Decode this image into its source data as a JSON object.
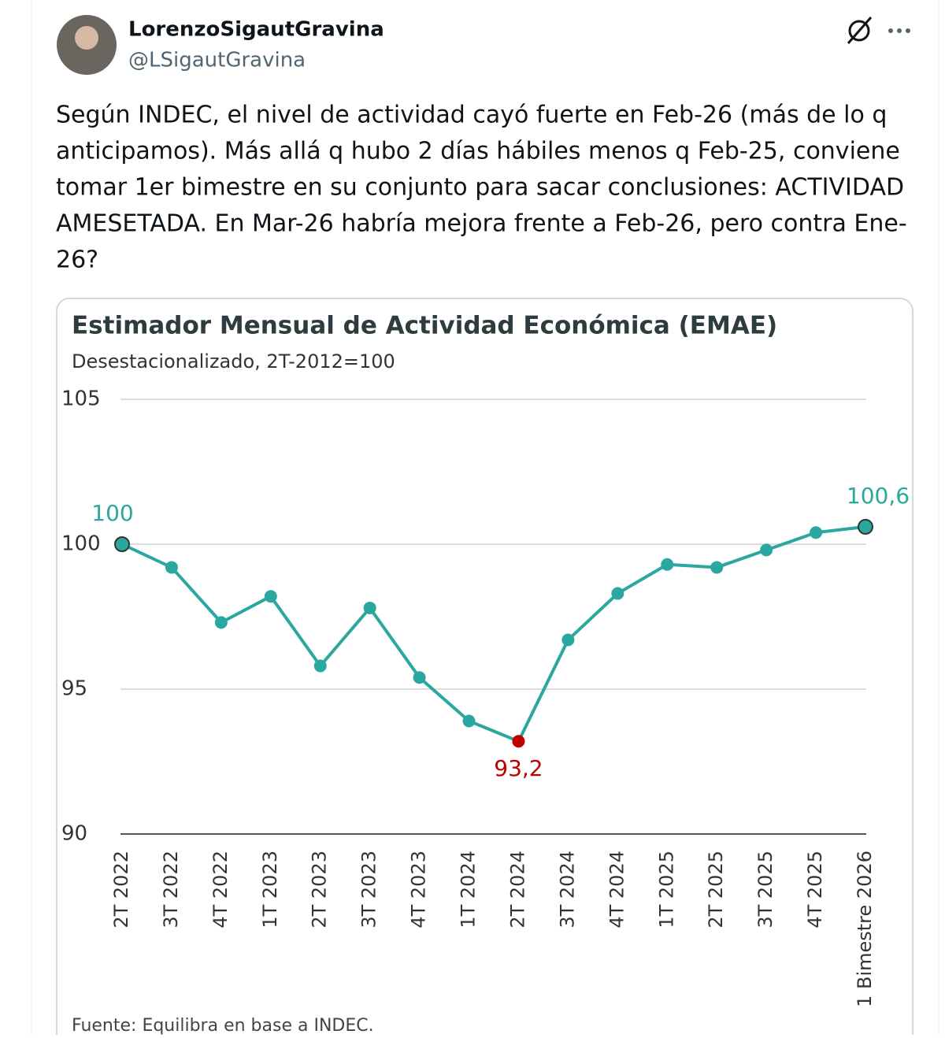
{
  "tweet": {
    "author_name": "LorenzoSigautGravina",
    "handle": "@LSigautGravina",
    "text_lines": [
      "Según INDEC, el nivel de actividad cayó fuerte en Feb-26 (más de lo q",
      "anticipamos). Más allá q hubo 2 días hábiles menos q Feb-25, conviene",
      "tomar 1er bimestre en su conjunto para sacar conclusiones: ACTIVIDAD",
      "AMESETADA. En Mar-26 habría mejora frente a Feb-26, pero contra Ene-",
      "26?"
    ]
  },
  "chart_data": {
    "type": "line",
    "title": "Estimador Mensual de Actividad Económica (EMAE)",
    "subtitle": "Desestacionalizado, 2T-2012=100",
    "categories": [
      "2T 2022",
      "3T 2022",
      "4T 2022",
      "1T 2023",
      "2T 2023",
      "3T 2023",
      "4T 2023",
      "1T 2024",
      "2T 2024",
      "3T 2024",
      "4T 2024",
      "1T 2025",
      "2T 2025",
      "3T 2025",
      "4T 2025",
      "1 Bimestre 2026"
    ],
    "series": [
      {
        "name": "EMAE",
        "color": "#2aa8a0",
        "values": [
          100,
          99.2,
          97.3,
          98.2,
          95.8,
          97.8,
          95.4,
          93.9,
          93.2,
          96.7,
          98.3,
          99.3,
          99.2,
          99.8,
          100.4,
          100.6
        ],
        "value_labels": [
          "100",
          null,
          null,
          null,
          null,
          null,
          null,
          null,
          "93,2",
          null,
          null,
          null,
          null,
          null,
          null,
          "100,6"
        ]
      }
    ],
    "highlight_color": "#c00000",
    "ylim": [
      90,
      105
    ],
    "yticks": [
      90,
      95,
      100,
      105
    ],
    "grid": true,
    "source": "Fuente: Equilibra en base a INDEC."
  }
}
